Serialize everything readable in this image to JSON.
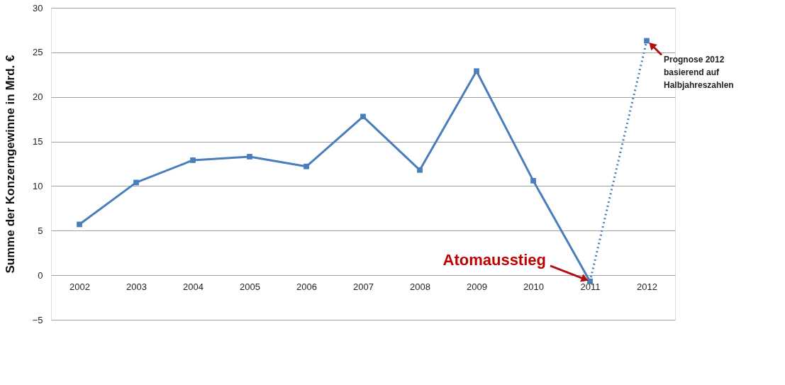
{
  "chart_data": {
    "type": "line",
    "ylabel": "Summe der Konzerngewinne in Mrd. €",
    "categories": [
      "2002",
      "2003",
      "2004",
      "2005",
      "2006",
      "2007",
      "2008",
      "2009",
      "2010",
      "2011",
      "2012"
    ],
    "series": [
      {
        "color": "#4a7ebb",
        "line_style": "solid",
        "values": [
          5.7,
          10.4,
          12.9,
          13.3,
          12.2,
          17.8,
          11.8,
          22.9,
          10.6,
          -0.7,
          null
        ]
      },
      {
        "color": "#4a7ebb",
        "line_style": "dotted",
        "values": [
          null,
          null,
          null,
          null,
          null,
          null,
          null,
          null,
          null,
          -0.7,
          26.3
        ]
      }
    ],
    "ylim": [
      -5,
      30
    ],
    "yticks": [
      -5,
      0,
      5,
      10,
      15,
      20,
      25,
      30
    ],
    "grid": "y",
    "marker": "square",
    "annotations": [
      {
        "text": "Atomausstieg",
        "x": "2011",
        "y": -0.7
      },
      {
        "text": "Prognose 2012\nbasierend auf\nHalbjahreszahlen",
        "x": "2012",
        "y": 26.3
      }
    ]
  }
}
